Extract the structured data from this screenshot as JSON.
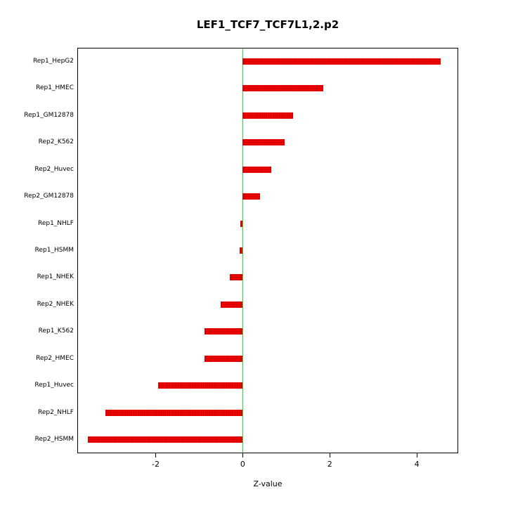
{
  "chart_data": {
    "type": "bar",
    "orientation": "horizontal",
    "title": "LEF1_TCF7_TCF7L1,2.p2",
    "xlabel": "Z-value",
    "categories": [
      "Rep1_HepG2",
      "Rep1_HMEC",
      "Rep1_GM12878",
      "Rep2_K562",
      "Rep2_Huvec",
      "Rep2_GM12878",
      "Rep1_NHLF",
      "Rep1_HSMM",
      "Rep1_NHEK",
      "Rep2_NHEK",
      "Rep1_K562",
      "Rep2_HMEC",
      "Rep1_Huvec",
      "Rep2_NHLF",
      "Rep2_HSMM"
    ],
    "values": [
      4.55,
      1.85,
      1.15,
      0.97,
      0.65,
      0.4,
      -0.05,
      -0.07,
      -0.3,
      -0.5,
      -0.87,
      -0.88,
      -1.95,
      -3.15,
      -3.55
    ],
    "x_ticks": [
      -2,
      0,
      2,
      4
    ],
    "xlim": [
      -3.8,
      4.95
    ],
    "bar_color": "#f70000",
    "zero_line_color": "#21e521",
    "grid": false,
    "legend": "none"
  }
}
